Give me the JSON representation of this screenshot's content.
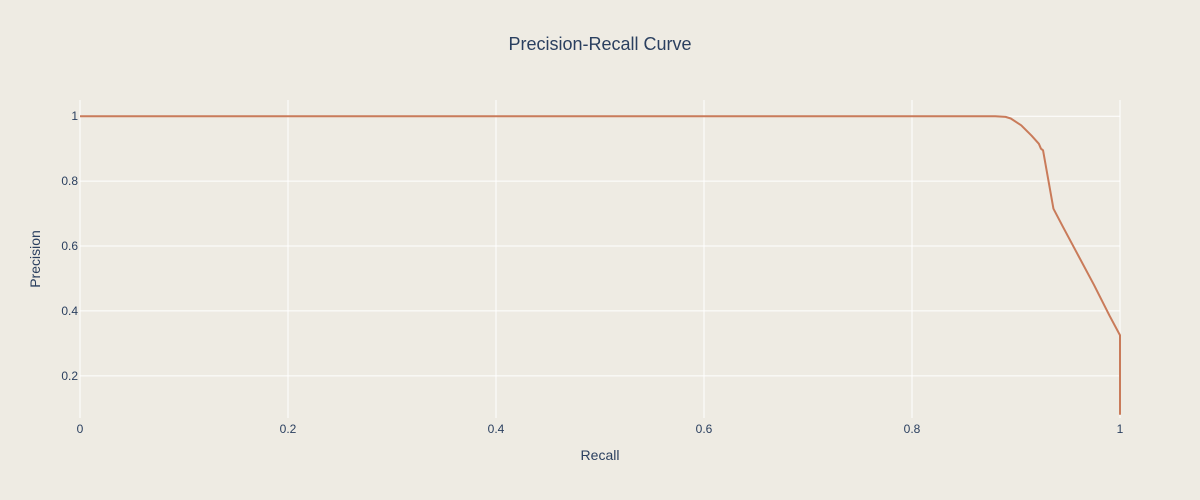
{
  "chart_data": {
    "type": "line",
    "title": "Precision-Recall Curve",
    "xlabel": "Recall",
    "ylabel": "Precision",
    "xlim": [
      0,
      1
    ],
    "ylim": [
      0.07,
      1.05
    ],
    "grid": true,
    "x_ticks": [
      0,
      0.2,
      0.4,
      0.6,
      0.8,
      1
    ],
    "x_tick_labels": [
      "0",
      "0.2",
      "0.4",
      "0.6",
      "0.8",
      "1"
    ],
    "y_ticks": [
      0.2,
      0.4,
      0.6,
      0.8,
      1
    ],
    "y_tick_labels": [
      "0.2",
      "0.4",
      "0.6",
      "0.8",
      "1"
    ],
    "series": [
      {
        "color": "#C97B5A",
        "x": [
          0,
          0.1,
          0.2,
          0.3,
          0.4,
          0.5,
          0.6,
          0.7,
          0.8,
          0.85,
          0.88,
          0.89,
          0.895,
          0.905,
          0.915,
          0.922,
          0.924,
          0.926,
          0.936,
          0.945,
          0.96,
          0.975,
          0.99,
          1.0,
          1.0
        ],
        "y": [
          1,
          1,
          1,
          1,
          1,
          1,
          1,
          1,
          1,
          1,
          1,
          0.998,
          0.993,
          0.972,
          0.94,
          0.915,
          0.9,
          0.895,
          0.715,
          0.66,
          0.57,
          0.48,
          0.385,
          0.325,
          0.08
        ]
      }
    ]
  },
  "colors": {
    "background": "#EEEBE3",
    "grid": "#FFFFFF",
    "text": "#2A3F5F",
    "line": "#C97B5A"
  }
}
